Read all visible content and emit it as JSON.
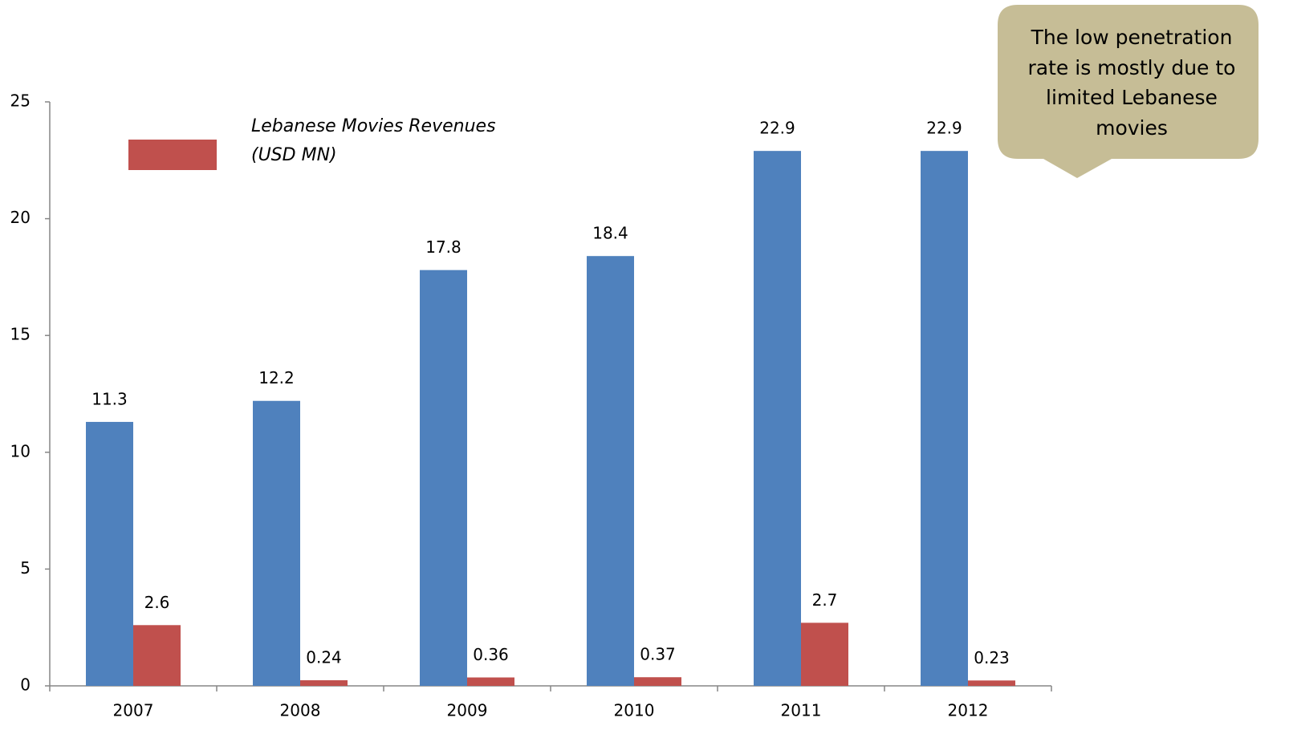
{
  "chart_data": {
    "type": "bar",
    "annotation": "The low penetration rate is mostly due to limited Lebanese movies",
    "categories": [
      "2007",
      "2008",
      "2009",
      "2010",
      "2011",
      "2012"
    ],
    "series": [
      {
        "color": "#4f81bd",
        "values": [
          11.3,
          12.2,
          17.8,
          18.4,
          22.9,
          22.9
        ]
      },
      {
        "name": "Lebanese Movies Revenues (USD MN)",
        "color": "#c0504d",
        "values": [
          2.6,
          0.24,
          0.36,
          0.37,
          2.7,
          0.23
        ]
      }
    ],
    "ylim": [
      0,
      25
    ],
    "yticks": [
      0,
      5,
      10,
      15,
      20,
      25
    ],
    "grid": false,
    "legend": "top-left"
  }
}
